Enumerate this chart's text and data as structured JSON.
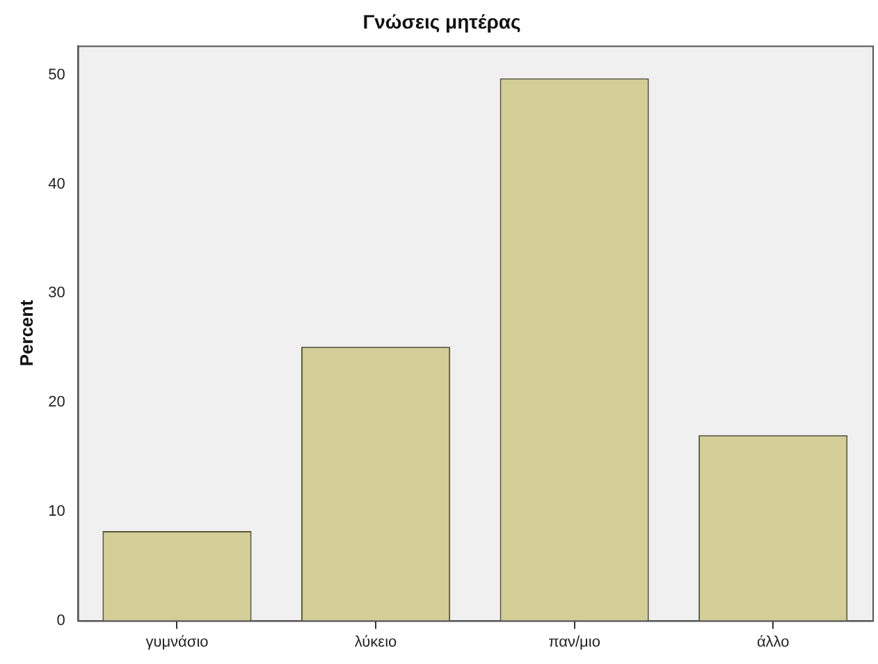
{
  "chart_data": {
    "type": "bar",
    "title": "Γνώσεις μητέρας",
    "ylabel": "Percent",
    "categories": [
      "γυμνάσιο",
      "λύκειο",
      "παν/μιο",
      "άλλο"
    ],
    "values": [
      8.2,
      25.1,
      49.7,
      17.0
    ],
    "color": "#d3ce96",
    "ylim": [
      0,
      52.7
    ],
    "yticks": [
      0,
      10,
      20,
      30,
      40,
      50
    ],
    "grid": false,
    "legend": false
  }
}
